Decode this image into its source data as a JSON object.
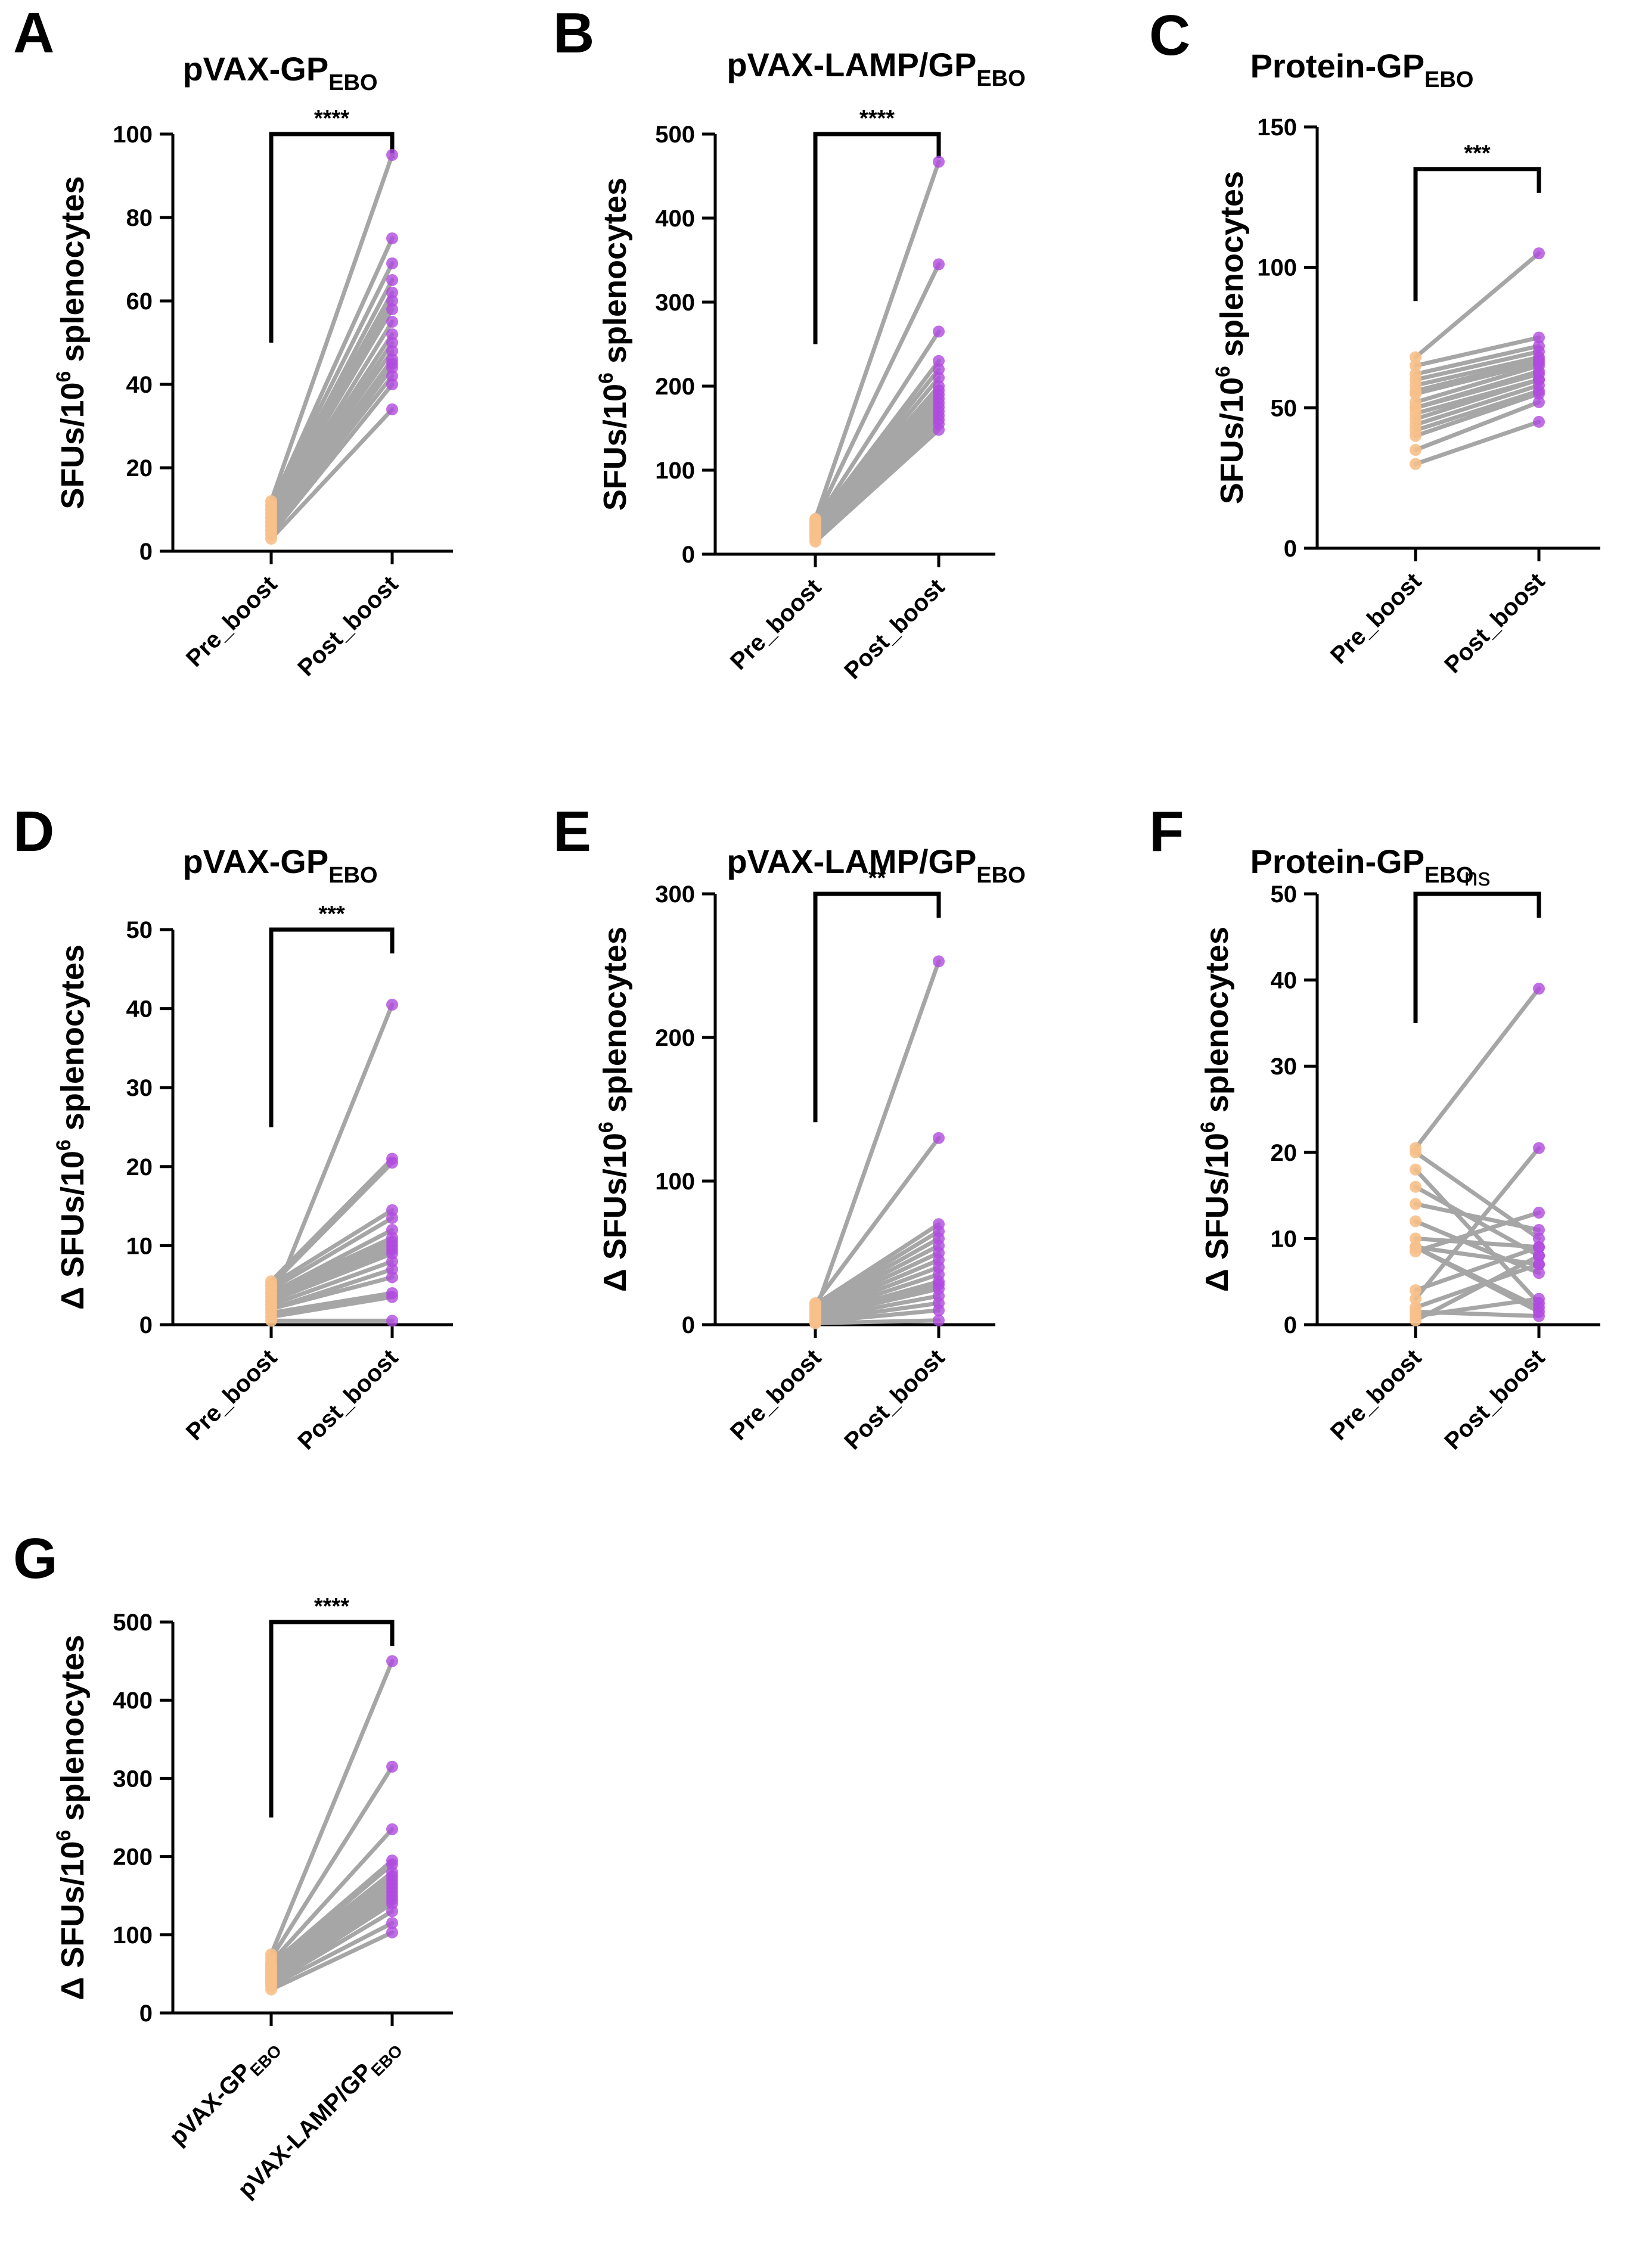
{
  "figure": {
    "colors": {
      "pre": "#f7c08a",
      "post": "#b04ae0",
      "line": "#a6a6a6",
      "axis": "#000000"
    }
  },
  "chart_data": [
    {
      "id": "A",
      "type": "paired-scatter",
      "title": "pVAX-GP",
      "title_sub": "EBO",
      "ylabel": "SFUs/10",
      "ylabel_sup": "6",
      "ylabel_rest": " splenocytes",
      "ylim": [
        0,
        100
      ],
      "yticks": [
        "0",
        "20",
        "40",
        "60",
        "80",
        "100"
      ],
      "categories": [
        {
          "text": "Pre_boost",
          "sub": ""
        },
        {
          "text": "Post_boost",
          "sub": ""
        }
      ],
      "significance": "****",
      "pre": [
        3,
        4,
        5,
        5,
        6,
        6,
        7,
        7,
        8,
        8,
        9,
        9,
        10,
        10,
        11,
        11,
        12
      ],
      "post": [
        34,
        40,
        42,
        44,
        45,
        46,
        48,
        50,
        52,
        55,
        58,
        60,
        62,
        65,
        69,
        75,
        95
      ]
    },
    {
      "id": "B",
      "type": "paired-scatter",
      "title": "pVAX-LAMP/GP",
      "title_sub": "EBO",
      "ylabel": "SFUs/10",
      "ylabel_sup": "6",
      "ylabel_rest": " splenocytes",
      "ylim": [
        0,
        500
      ],
      "yticks": [
        "0",
        "100",
        "200",
        "300",
        "400",
        "500"
      ],
      "categories": [
        {
          "text": "Pre_boost",
          "sub": ""
        },
        {
          "text": "Post_boost",
          "sub": ""
        }
      ],
      "significance": "****",
      "pre": [
        15,
        18,
        20,
        22,
        24,
        25,
        26,
        28,
        30,
        30,
        32,
        33,
        35,
        36,
        38,
        40,
        42
      ],
      "post": [
        148,
        155,
        160,
        165,
        170,
        175,
        180,
        185,
        190,
        195,
        200,
        210,
        220,
        230,
        265,
        345,
        467
      ]
    },
    {
      "id": "C",
      "type": "paired-scatter",
      "title": "Protein-GP",
      "title_sub": "EBO",
      "ylabel": "SFUs/10",
      "ylabel_sup": "6",
      "ylabel_rest": " splenocytes",
      "ylim": [
        0,
        150
      ],
      "yticks": [
        "0",
        "50",
        "100",
        "150"
      ],
      "categories": [
        {
          "text": "Pre_boost",
          "sub": ""
        },
        {
          "text": "Post_boost",
          "sub": ""
        }
      ],
      "significance": "***",
      "pre": [
        30,
        35,
        40,
        42,
        44,
        46,
        48,
        50,
        50,
        52,
        55,
        56,
        58,
        60,
        62,
        65,
        68
      ],
      "post": [
        45,
        52,
        55,
        56,
        58,
        60,
        60,
        62,
        63,
        65,
        66,
        67,
        68,
        70,
        72,
        75,
        105
      ]
    },
    {
      "id": "D",
      "type": "paired-scatter",
      "title": "pVAX-GP",
      "title_sub": "EBO",
      "ylabel": "Δ SFUs/10",
      "ylabel_sup": "6",
      "ylabel_rest": " splenocytes",
      "ylim": [
        0,
        50
      ],
      "yticks": [
        "0",
        "10",
        "20",
        "30",
        "40",
        "50"
      ],
      "categories": [
        {
          "text": "Pre_boost",
          "sub": ""
        },
        {
          "text": "Post_boost",
          "sub": ""
        }
      ],
      "significance": "***",
      "pre": [
        0.5,
        1,
        1.5,
        2,
        2,
        2.5,
        3,
        3,
        3.5,
        4,
        4,
        4.5,
        5,
        5,
        5.5,
        3,
        2.5
      ],
      "post": [
        0.5,
        3.5,
        4,
        6,
        7,
        8,
        9,
        10,
        10.5,
        11,
        12,
        13.5,
        14.5,
        20.5,
        21,
        9.5,
        40.5
      ]
    },
    {
      "id": "E",
      "type": "paired-scatter",
      "title": "pVAX-LAMP/GP",
      "title_sub": "EBO",
      "ylabel": "Δ SFUs/10",
      "ylabel_sup": "6",
      "ylabel_rest": " splenocytes",
      "ylim": [
        0,
        300
      ],
      "yticks": [
        "0",
        "100",
        "200",
        "300"
      ],
      "categories": [
        {
          "text": "Pre_boost",
          "sub": ""
        },
        {
          "text": "Post_boost",
          "sub": ""
        }
      ],
      "significance": "**",
      "pre": [
        1,
        2,
        3,
        4,
        5,
        6,
        7,
        8,
        9,
        10,
        11,
        12,
        13,
        14,
        15,
        6,
        9
      ],
      "post": [
        3,
        10,
        15,
        20,
        25,
        30,
        35,
        40,
        45,
        50,
        55,
        60,
        65,
        70,
        130,
        28,
        253
      ]
    },
    {
      "id": "F",
      "type": "paired-scatter",
      "title": "Protein-GP",
      "title_sub": "EBO",
      "ylabel": "Δ SFUs/10",
      "ylabel_sup": "6",
      "ylabel_rest": " splenocytes",
      "ylim": [
        0,
        50
      ],
      "yticks": [
        "0",
        "10",
        "20",
        "30",
        "40",
        "50"
      ],
      "categories": [
        {
          "text": "Pre_boost",
          "sub": ""
        },
        {
          "text": "Post_boost",
          "sub": ""
        }
      ],
      "significance": "ns",
      "pre": [
        0.5,
        1,
        1.5,
        2,
        3,
        4,
        8.5,
        9,
        9,
        10,
        12,
        14,
        16,
        18,
        20,
        20.5,
        9
      ],
      "post": [
        8,
        3,
        1,
        7,
        20.5,
        9,
        13,
        2,
        7,
        9,
        6,
        11,
        8,
        2.5,
        10,
        39,
        1.5
      ]
    },
    {
      "id": "G",
      "type": "paired-scatter",
      "title": "",
      "title_sub": "",
      "ylabel": "Δ SFUs/10",
      "ylabel_sup": "6",
      "ylabel_rest": " splenocytes",
      "ylim": [
        0,
        500
      ],
      "yticks": [
        "0",
        "100",
        "200",
        "300",
        "400",
        "500"
      ],
      "categories": [
        {
          "text": "pVAX-GP",
          "sub": "EBO"
        },
        {
          "text": "pVAX-LAMP/GP",
          "sub": "EBO"
        }
      ],
      "significance": "****",
      "pre": [
        30,
        35,
        38,
        40,
        42,
        44,
        46,
        48,
        50,
        52,
        55,
        58,
        60,
        62,
        65,
        70,
        75
      ],
      "post": [
        103,
        115,
        130,
        140,
        145,
        150,
        155,
        160,
        165,
        170,
        175,
        180,
        190,
        195,
        235,
        315,
        450
      ]
    }
  ]
}
